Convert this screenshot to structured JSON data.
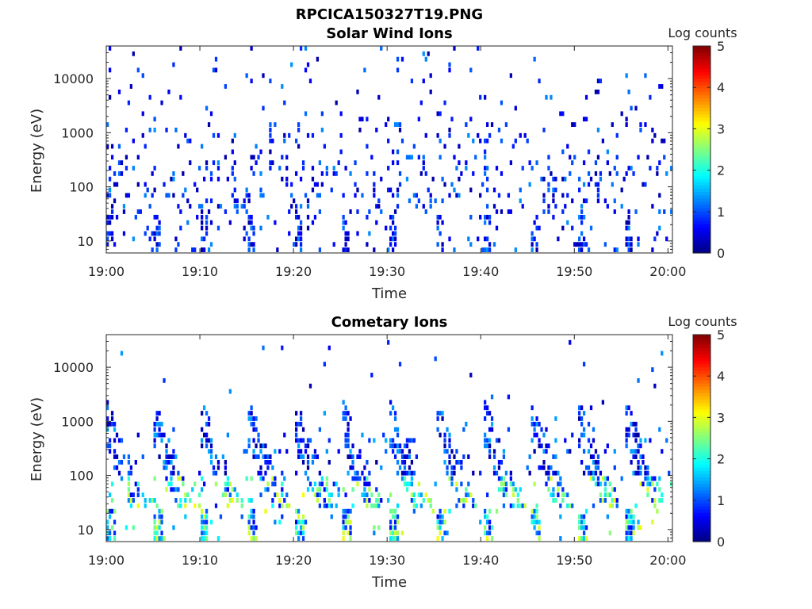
{
  "figure": {
    "title": "RPCICA150327T19.PNG",
    "colors": {
      "background": "#ffffff",
      "axis": "#262626",
      "colormap": [
        "#000080",
        "#0000ff",
        "#0080ff",
        "#00ffff",
        "#80ff80",
        "#ffff00",
        "#ff8000",
        "#ff0000",
        "#800000"
      ]
    }
  },
  "chart_data": [
    {
      "type": "heatmap",
      "title": "Solar Wind Ions",
      "xlabel": "Time",
      "ylabel": "Energy (eV)",
      "x_ticks": [
        "19:00",
        "19:10",
        "19:20",
        "19:30",
        "19:40",
        "19:50",
        "20:00"
      ],
      "x_range": [
        "19:00",
        "20:00"
      ],
      "y_scale": "log",
      "y_ticks": [
        10,
        100,
        1000,
        10000
      ],
      "y_range": [
        6,
        40000
      ],
      "colorbar": {
        "label": "Log counts",
        "range": [
          0,
          5
        ],
        "ticks": [
          0,
          1,
          2,
          3,
          4,
          5
        ]
      },
      "pattern": "sparse",
      "seed": 17
    },
    {
      "type": "heatmap",
      "title": "Cometary Ions",
      "xlabel": "Time",
      "ylabel": "Energy (eV)",
      "x_ticks": [
        "19:00",
        "19:10",
        "19:20",
        "19:30",
        "19:40",
        "19:50",
        "20:00"
      ],
      "x_range": [
        "19:00",
        "20:00"
      ],
      "y_scale": "log",
      "y_ticks": [
        10,
        100,
        1000,
        10000
      ],
      "y_range": [
        6,
        40000
      ],
      "colorbar": {
        "label": "Log counts",
        "range": [
          0,
          5
        ],
        "ticks": [
          0,
          1,
          2,
          3,
          4,
          5
        ]
      },
      "pattern": "streaks",
      "seed": 42
    }
  ]
}
